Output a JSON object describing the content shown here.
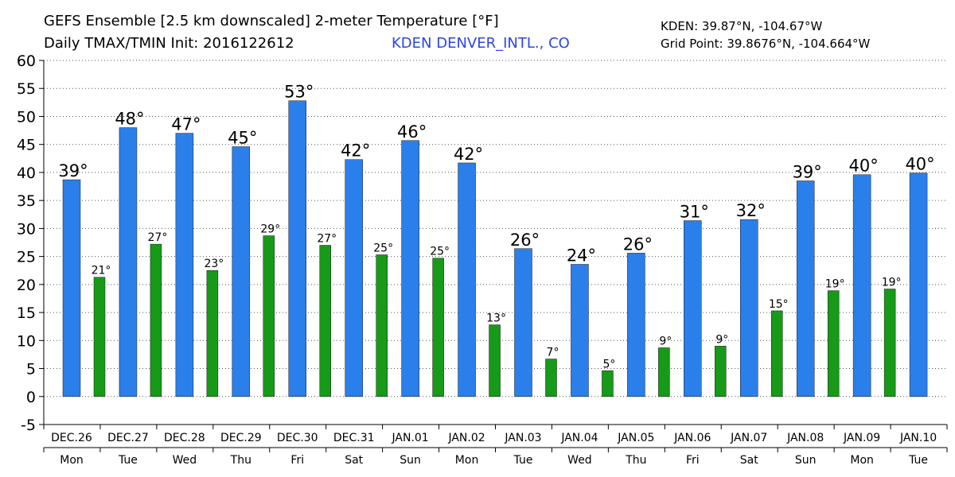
{
  "chart_data": {
    "type": "bar",
    "title": "GEFS Ensemble [2.5 km downscaled] 2-meter Temperature [°F]",
    "subtitle": "Daily TMAX/TMIN Init: 2016122612",
    "station": "KDEN DENVER_INTL., CO",
    "station_coords": "KDEN: 39.87°N, -104.67°W",
    "grid_point": "Grid Point: 39.8676°N, -104.664°W",
    "categories": [
      "DEC.26",
      "DEC.27",
      "DEC.28",
      "DEC.29",
      "DEC.30",
      "DEC.31",
      "JAN.01",
      "JAN.02",
      "JAN.03",
      "JAN.04",
      "JAN.05",
      "JAN.06",
      "JAN.07",
      "JAN.08",
      "JAN.09",
      "JAN.10"
    ],
    "weekdays": [
      "Mon",
      "Tue",
      "Wed",
      "Thu",
      "Fri",
      "Sat",
      "Sun",
      "Mon",
      "Tue",
      "Wed",
      "Thu",
      "Fri",
      "Sat",
      "Sun",
      "Mon",
      "Tue"
    ],
    "series": [
      {
        "color": "#2b7fea",
        "values": [
          38.7,
          48,
          47,
          44.6,
          52.8,
          42.3,
          45.7,
          41.7,
          26.4,
          23.6,
          25.6,
          31.4,
          31.6,
          38.5,
          39.6,
          39.9
        ],
        "value_labels": [
          "39°",
          "48°",
          "47°",
          "45°",
          "53°",
          "42°",
          "46°",
          "42°",
          "26°",
          "24°",
          "26°",
          "31°",
          "32°",
          "39°",
          "40°",
          "40°"
        ]
      },
      {
        "color": "#179a17",
        "values": [
          21.3,
          27.2,
          22.5,
          28.7,
          27,
          25.3,
          24.7,
          12.8,
          6.7,
          4.6,
          8.7,
          9,
          15.3,
          18.9,
          19.2,
          null
        ],
        "value_labels": [
          "21°",
          "27°",
          "23°",
          "29°",
          "27°",
          "25°",
          "25°",
          "13°",
          "7°",
          "5°",
          "9°",
          "9°",
          "15°",
          "19°",
          "19°",
          null
        ]
      }
    ],
    "ylim": [
      -5,
      60
    ],
    "yticks": [
      -5,
      0,
      5,
      10,
      15,
      20,
      25,
      30,
      35,
      40,
      45,
      50,
      55,
      60
    ],
    "grid": true
  }
}
